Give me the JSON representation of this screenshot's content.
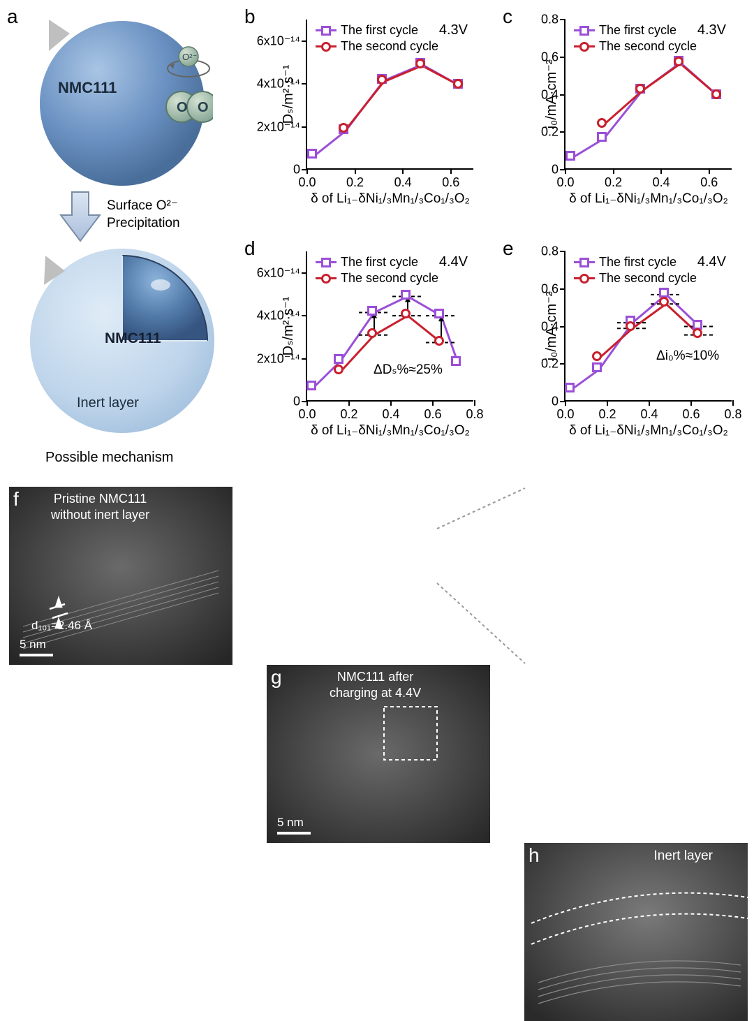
{
  "panel_a": {
    "label": "a",
    "material_label": "NMC111",
    "sphere_color": "#6a91c2",
    "shell_color": "#b9d1e9",
    "arrow_label": "Surface O²⁻\nPrecipitation",
    "inert_label": "Inert layer",
    "oxygen_label": "O",
    "o2minus_label": "O²⁻",
    "mechanism_label": "Possible mechanism"
  },
  "charts_common": {
    "xlabel": "δ of Li₁₋δNi₁/₃Mn₁/₃Co₁/₃O₂",
    "legend_first": "The first cycle",
    "legend_second": "The second cycle",
    "color_first": "#9b4fd8",
    "color_second": "#c9202e",
    "marker_size": 14,
    "line_width": 3
  },
  "panel_b": {
    "label": "b",
    "voltage": "4.3V",
    "ylabel": "Dₛ/m²·s⁻¹",
    "yticks": [
      0,
      2e-14,
      4e-14,
      6e-14
    ],
    "ytick_labels": [
      "0",
      "2x10⁻¹⁴",
      "4x10⁻¹⁴",
      "6x10⁻¹⁴"
    ],
    "xticks": [
      0.0,
      0.2,
      0.4,
      0.6
    ],
    "xlim": [
      0,
      0.7
    ],
    "ylim": [
      0,
      7e-14
    ],
    "first": {
      "x": [
        0.03,
        0.16,
        0.32,
        0.48,
        0.64
      ],
      "y": [
        6.5e-15,
        1.8e-14,
        4.15e-14,
        4.9e-14,
        3.9e-14
      ]
    },
    "second": {
      "x": [
        0.16,
        0.32,
        0.48,
        0.64
      ],
      "y": [
        1.85e-14,
        4.1e-14,
        4.85e-14,
        3.9e-14
      ]
    }
  },
  "panel_c": {
    "label": "c",
    "voltage": "4.3V",
    "ylabel": "i₀/mA·cm⁻²",
    "yticks": [
      0.0,
      0.2,
      0.4,
      0.6,
      0.8
    ],
    "xticks": [
      0.0,
      0.2,
      0.4,
      0.6
    ],
    "xlim": [
      0,
      0.7
    ],
    "ylim": [
      0,
      0.8
    ],
    "first": {
      "x": [
        0.03,
        0.16,
        0.32,
        0.48,
        0.64
      ],
      "y": [
        0.065,
        0.165,
        0.42,
        0.57,
        0.39
      ]
    },
    "second": {
      "x": [
        0.16,
        0.32,
        0.48,
        0.64
      ],
      "y": [
        0.24,
        0.42,
        0.565,
        0.39
      ]
    }
  },
  "panel_d": {
    "label": "d",
    "voltage": "4.4V",
    "ylabel": "Dₛ/m²·s⁻¹",
    "yticks": [
      0,
      2e-14,
      4e-14,
      6e-14
    ],
    "ytick_labels": [
      "0",
      "2x10⁻¹⁴",
      "4x10⁻¹⁴",
      "6x10⁻¹⁴"
    ],
    "xticks": [
      0.0,
      0.2,
      0.4,
      0.6,
      0.8
    ],
    "xlim": [
      0,
      0.8
    ],
    "ylim": [
      0,
      7e-14
    ],
    "first": {
      "x": [
        0.03,
        0.16,
        0.32,
        0.48,
        0.64,
        0.72
      ],
      "y": [
        6.5e-15,
        1.9e-14,
        4.15e-14,
        4.9e-14,
        4e-14,
        1.8e-14
      ]
    },
    "second": {
      "x": [
        0.16,
        0.32,
        0.48,
        0.64
      ],
      "y": [
        1.4e-14,
        3.1e-14,
        4e-14,
        2.75e-14
      ]
    },
    "annotation": "ΔDₛ%≈25%"
  },
  "panel_e": {
    "label": "e",
    "voltage": "4.4V",
    "ylabel": "i₀/mA·cm⁻²",
    "yticks": [
      0.0,
      0.2,
      0.4,
      0.6,
      0.8
    ],
    "xticks": [
      0.0,
      0.2,
      0.4,
      0.6,
      0.8
    ],
    "xlim": [
      0,
      0.8
    ],
    "ylim": [
      0,
      0.8
    ],
    "first": {
      "x": [
        0.03,
        0.16,
        0.32,
        0.48,
        0.64
      ],
      "y": [
        0.065,
        0.17,
        0.42,
        0.57,
        0.4
      ]
    },
    "second": {
      "x": [
        0.16,
        0.32,
        0.48,
        0.64
      ],
      "y": [
        0.23,
        0.39,
        0.52,
        0.355
      ]
    },
    "annotation": "Δi₀%≈10%"
  },
  "panel_f": {
    "label": "f",
    "title": "Pristine NMC111\nwithout inert layer",
    "d_spacing": "d₁₀₁=2.46 Å",
    "scalebar": "5 nm"
  },
  "panel_g": {
    "label": "g",
    "title": "NMC111 after\ncharging at 4.4V",
    "scalebar": "5 nm"
  },
  "panel_h": {
    "label": "h",
    "title": "Inert layer"
  }
}
